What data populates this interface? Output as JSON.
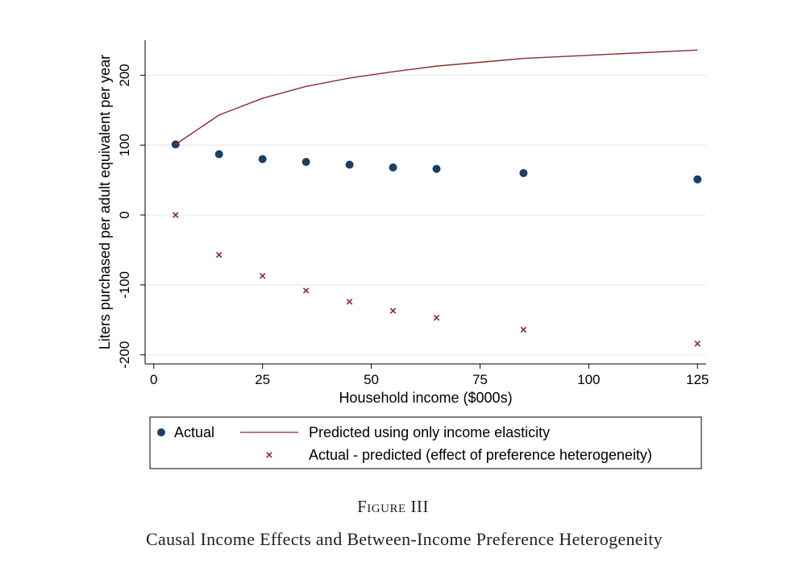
{
  "figure_label": "Figure III",
  "figure_title": "Causal Income Effects and Between-Income Preference Heterogeneity",
  "chart_data": {
    "type": "line",
    "xlabel": "Household income ($000s)",
    "ylabel": "Liters purchased per adult equivalent per year",
    "xlim": [
      -2,
      127
    ],
    "ylim": [
      -213,
      250
    ],
    "xticks": [
      0,
      25,
      50,
      75,
      100,
      125
    ],
    "yticks": [
      -200,
      -100,
      0,
      100,
      200
    ],
    "grid": "horizontal",
    "legend_position": "bottom",
    "x": [
      5,
      15,
      25,
      35,
      45,
      55,
      65,
      85,
      125
    ],
    "series": [
      {
        "name": "Actual",
        "kind": "scatter",
        "marker": "circle",
        "color": "#1a3f66",
        "values": [
          101,
          87,
          80,
          76,
          72,
          68,
          66,
          60,
          51
        ]
      },
      {
        "name": "Predicted using only income elasticity",
        "kind": "line",
        "color": "#8c2a2a",
        "values": [
          101,
          143,
          167,
          184,
          196,
          205,
          213,
          224,
          236
        ]
      },
      {
        "name": "Actual - predicted (effect of preference heterogeneity)",
        "kind": "scatter",
        "marker": "x",
        "color": "#8c2a2a",
        "values": [
          0,
          -57,
          -87,
          -108,
          -124,
          -137,
          -147,
          -164,
          -184
        ]
      }
    ]
  }
}
